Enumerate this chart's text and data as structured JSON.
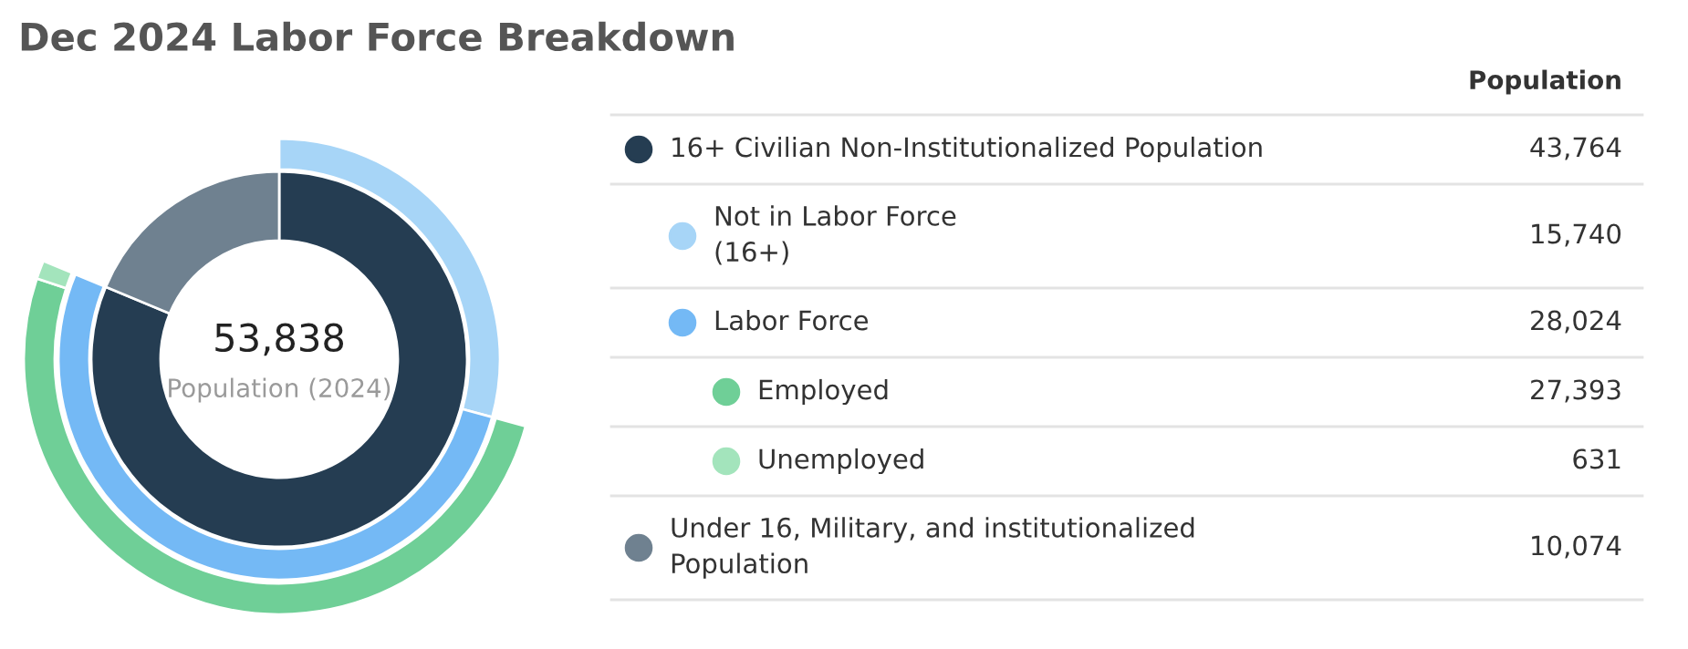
{
  "chart_data": {
    "type": "donut",
    "title": "Dec 2024 Labor Force Breakdown",
    "legend_title": "Population",
    "legend": "right",
    "categories": [
      "16+ Civilian Non-Institutionalized Population",
      "Not in Labor Force\n(16+)",
      "Labor Force",
      "Employed",
      "Unemployed",
      "Under 16, Military, and institutionalized\nPopulation"
    ],
    "series": [
      {
        "values": [
          43764,
          null,
          null,
          null,
          null,
          10074
        ],
        "value_labels": [
          "43,764",
          null,
          null,
          null,
          null,
          "10,074"
        ],
        "colors": [
          "#253d52",
          null,
          null,
          null,
          null,
          "#6f8190"
        ]
      },
      {
        "values": [
          null,
          15740,
          28024,
          null,
          null,
          null
        ],
        "value_labels": [
          null,
          "15,740",
          "28,024",
          null,
          null,
          null
        ],
        "colors": [
          null,
          "#a7d5f7",
          "#74b9f5",
          null,
          null,
          null
        ]
      },
      {
        "values": [
          null,
          null,
          null,
          27393,
          631,
          null
        ],
        "value_labels": [
          null,
          null,
          null,
          "27,393",
          "631",
          null
        ],
        "colors": [
          null,
          null,
          null,
          "#6fcf97",
          "#a3e4bc",
          null
        ]
      }
    ],
    "annotations": [
      "53,838",
      "Population (2024)"
    ]
  }
}
